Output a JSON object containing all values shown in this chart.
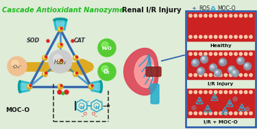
{
  "bg_color": "#deecd8",
  "title_left": "Cascade Antioxidant Nanozyme",
  "title_right": "Renal I/R Injury",
  "title_left_color": "#22bb22",
  "title_right_color": "#111111",
  "panel_bg": "#cc2222",
  "panel_border": "#2255aa",
  "panel_labels": [
    "Healthy",
    "I/R Injury",
    "I/R + MOC-O"
  ],
  "legend_ros": "ROS",
  "legend_moco": "MOC-O",
  "sod_label": "SOD",
  "cat_label": "CAT",
  "h2o2_label": "H₂O₂",
  "h2o_label": "H₂O",
  "o2_label": "O₂",
  "moco_label": "MOC-O",
  "cage_color": "#1177cc",
  "node_color": "#ddaa22",
  "arrow_color": "#ddaa22",
  "h2o_color": "#55cc33",
  "o2_color": "#55cc33",
  "red_dot_color": "#dd2222",
  "n_color": "#33aacc",
  "o_color": "#dd2222",
  "superoxide_color": "#f0c090",
  "h2o2_bg": "#dddddd"
}
